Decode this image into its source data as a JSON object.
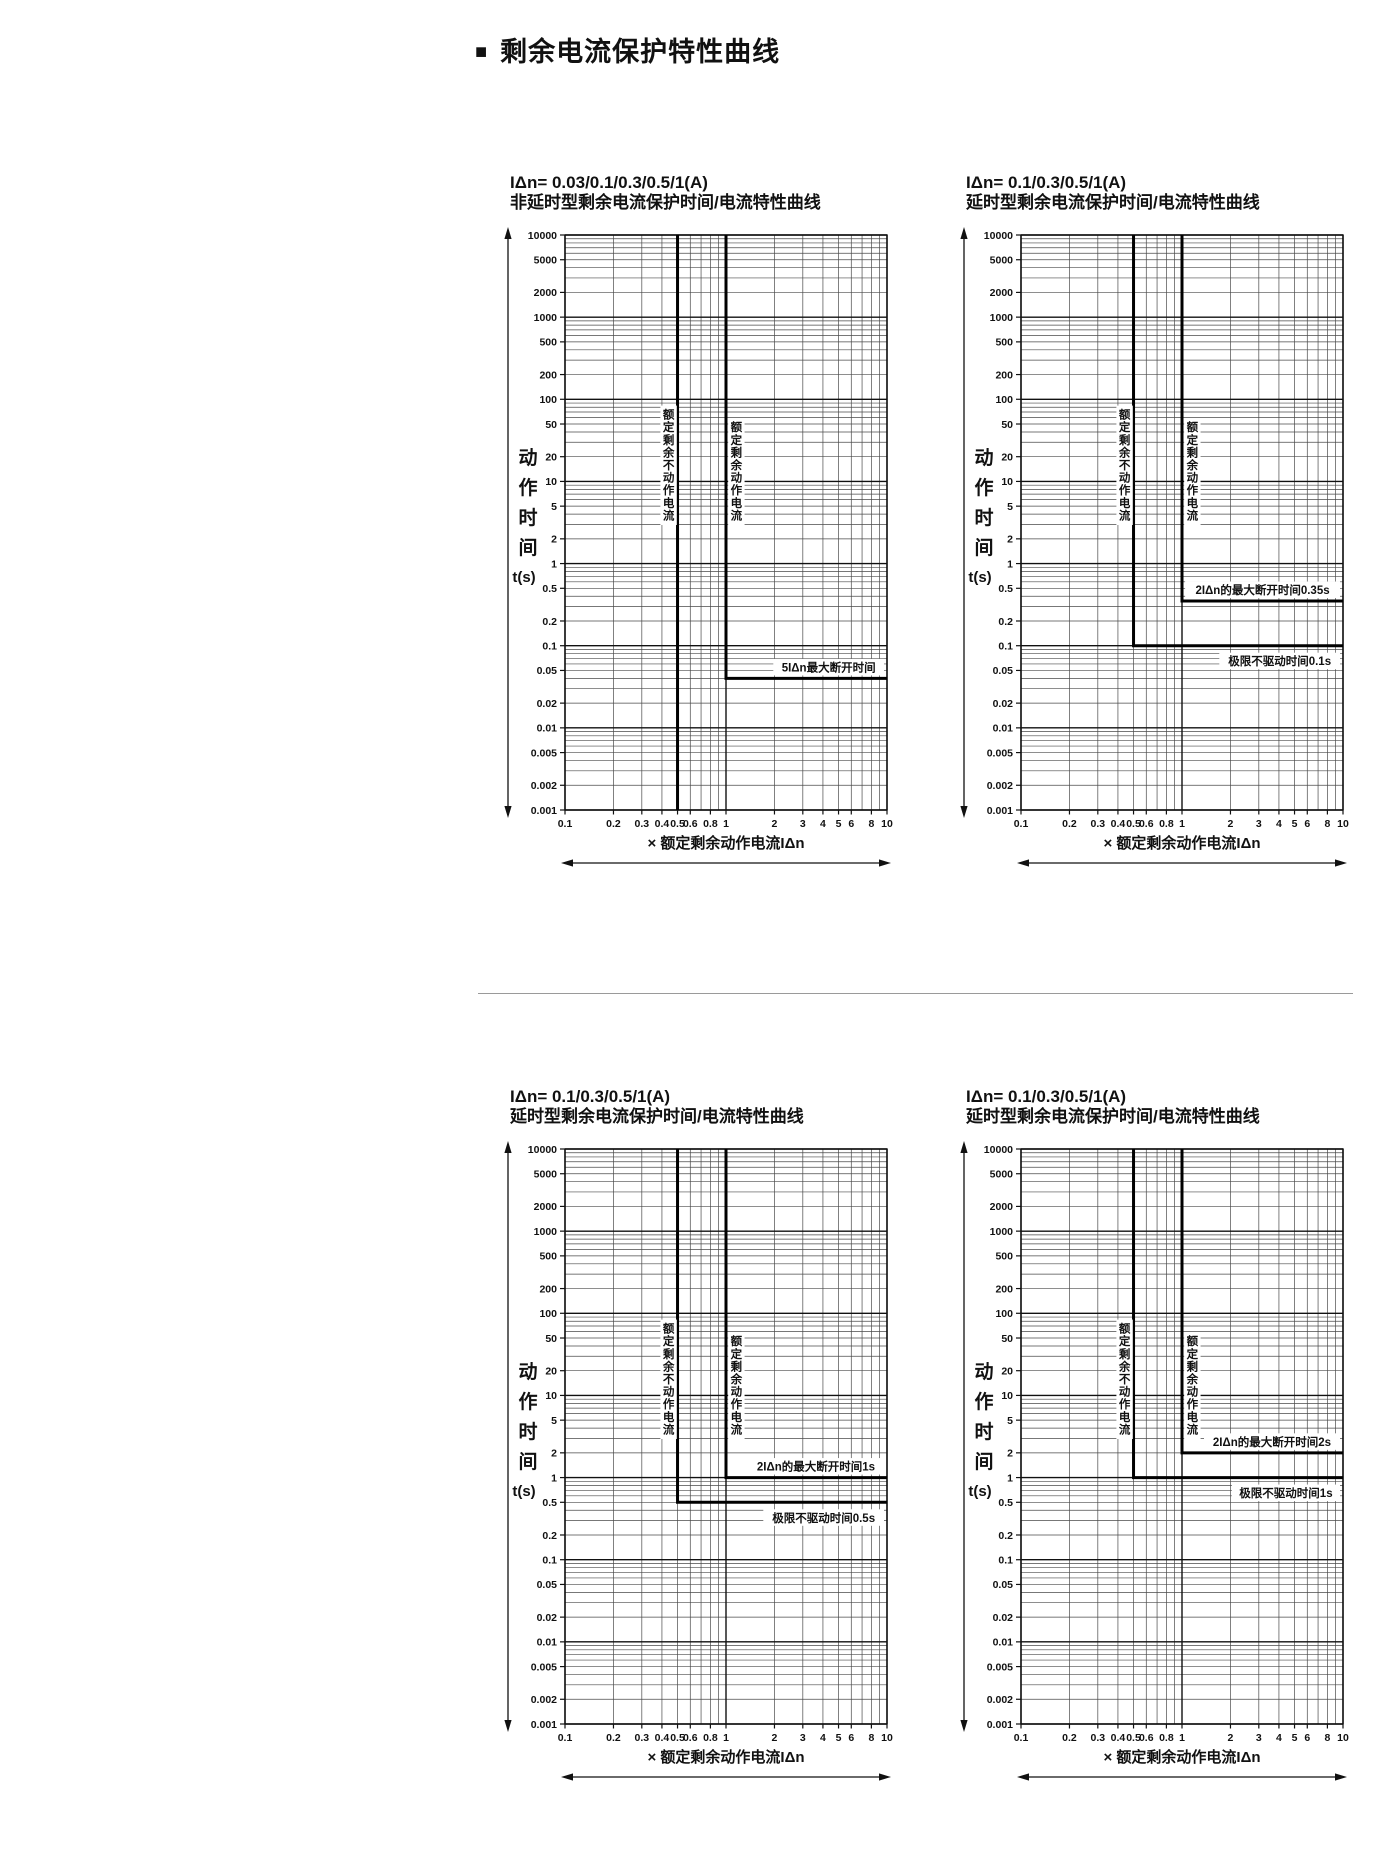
{
  "page": {
    "bullet": "■",
    "title": "剩余电流保护特性曲线"
  },
  "axis": {
    "y_label": "动作时间",
    "y_unit": "t(s)",
    "x_title": "× 额定剩余动作电流IΔn",
    "scale": "log-log",
    "grid": true,
    "x_range": [
      0.1,
      10
    ],
    "y_range": [
      0.001,
      10000
    ],
    "x_ticks": [
      "0.1",
      "0.2",
      "0.3",
      "0.4",
      "0.5",
      "0.6",
      "0.8",
      "1",
      "2",
      "3",
      "4",
      "5",
      "6",
      "8",
      "10"
    ],
    "y_ticks": [
      "10000",
      "5000",
      "2000",
      "1000",
      "500",
      "200",
      "100",
      "50",
      "20",
      "10",
      "5",
      "2",
      "1",
      "0.5",
      "0.2",
      "0.1",
      "0.05",
      "0.02",
      "0.01",
      "0.005",
      "0.002",
      "0.001"
    ]
  },
  "chart_data": [
    {
      "type": "line",
      "title_line1": "IΔn= 0.03/0.1/0.3/0.5/1(A)",
      "title_line2": "非延时型剩余电流保护时间/电流特性曲线",
      "series": [
        {
          "name": "额定剩余不动作电流",
          "points": [
            [
              0.5,
              10000
            ],
            [
              0.5,
              0.001
            ]
          ]
        },
        {
          "name": "额定剩余动作电流",
          "points": [
            [
              1,
              10000
            ],
            [
              1,
              0.04
            ],
            [
              10,
              0.04
            ]
          ]
        }
      ],
      "region_labels": [
        {
          "text": "额定剩余不动作电流",
          "x": 0.44
        },
        {
          "text": "额定剩余动作电流",
          "x": 1.16
        }
      ],
      "annotations": [
        {
          "text": "5IΔn最大断开时间",
          "t": 0.04,
          "pos": "above"
        }
      ]
    },
    {
      "type": "line",
      "title_line1": "IΔn= 0.1/0.3/0.5/1(A)",
      "title_line2": "延时型剩余电流保护时间/电流特性曲线",
      "series": [
        {
          "name": "额定剩余不动作电流",
          "points": [
            [
              0.5,
              10000
            ],
            [
              0.5,
              0.1
            ],
            [
              10,
              0.1
            ]
          ]
        },
        {
          "name": "额定剩余动作电流",
          "points": [
            [
              1,
              10000
            ],
            [
              1,
              0.35
            ],
            [
              10,
              0.35
            ]
          ]
        }
      ],
      "region_labels": [
        {
          "text": "额定剩余不动作电流",
          "x": 0.44
        },
        {
          "text": "额定剩余动作电流",
          "x": 1.16
        }
      ],
      "annotations": [
        {
          "text": "2IΔn的最大断开时间0.35s",
          "t": 0.35,
          "pos": "above"
        },
        {
          "text": "极限不驱动时间0.1s",
          "t": 0.1,
          "pos": "below"
        }
      ]
    },
    {
      "type": "line",
      "title_line1": "IΔn= 0.1/0.3/0.5/1(A)",
      "title_line2": "延时型剩余电流保护时间/电流特性曲线",
      "series": [
        {
          "name": "额定剩余不动作电流",
          "points": [
            [
              0.5,
              10000
            ],
            [
              0.5,
              0.5
            ],
            [
              10,
              0.5
            ]
          ]
        },
        {
          "name": "额定剩余动作电流",
          "points": [
            [
              1,
              10000
            ],
            [
              1,
              1
            ],
            [
              10,
              1
            ]
          ]
        }
      ],
      "region_labels": [
        {
          "text": "额定剩余不动作电流",
          "x": 0.44
        },
        {
          "text": "额定剩余动作电流",
          "x": 1.16
        }
      ],
      "annotations": [
        {
          "text": "2IΔn的最大断开时间1s",
          "t": 1,
          "pos": "above"
        },
        {
          "text": "极限不驱动时间0.5s",
          "t": 0.5,
          "pos": "below"
        }
      ]
    },
    {
      "type": "line",
      "title_line1": "IΔn= 0.1/0.3/0.5/1(A)",
      "title_line2": "延时型剩余电流保护时间/电流特性曲线",
      "series": [
        {
          "name": "额定剩余不动作电流",
          "points": [
            [
              0.5,
              10000
            ],
            [
              0.5,
              1
            ],
            [
              10,
              1
            ]
          ]
        },
        {
          "name": "额定剩余动作电流",
          "points": [
            [
              1,
              10000
            ],
            [
              1,
              2
            ],
            [
              10,
              2
            ]
          ]
        }
      ],
      "region_labels": [
        {
          "text": "额定剩余不动作电流",
          "x": 0.44
        },
        {
          "text": "额定剩余动作电流",
          "x": 1.16
        }
      ],
      "annotations": [
        {
          "text": "2IΔn的最大断开时间2s",
          "t": 2,
          "pos": "above"
        },
        {
          "text": "极限不驱动时间1s",
          "t": 1,
          "pos": "below"
        }
      ]
    }
  ],
  "colors": {
    "ink": "#111111",
    "grid_minor": "#4a4a4a",
    "grid_major": "#111111",
    "curve": "#000000",
    "background": "#ffffff"
  }
}
